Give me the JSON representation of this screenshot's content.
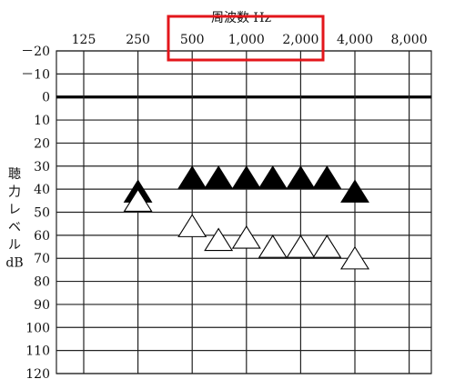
{
  "chart_data": {
    "type": "scatter",
    "title": "周波数 Hz",
    "xlabel": "周波数 Hz",
    "ylabel": "聴力レベル dB",
    "ylabel_chars": [
      "聴",
      "力",
      "レ",
      "ベ",
      "ル",
      "dB"
    ],
    "x_scale": "log2",
    "x_tick_values": [
      125,
      250,
      500,
      1000,
      2000,
      4000,
      8000
    ],
    "x_tick_labels": [
      "125",
      "250",
      "500",
      "1,000",
      "2,000",
      "4,000",
      "8,000"
    ],
    "y_ticks": [
      -20,
      -10,
      0,
      10,
      20,
      30,
      40,
      50,
      60,
      70,
      80,
      90,
      100,
      110,
      120
    ],
    "y_tick_labels": [
      "－20",
      "－10",
      "0",
      "10",
      "20",
      "30",
      "40",
      "50",
      "60",
      "70",
      "80",
      "90",
      "100",
      "110",
      "120"
    ],
    "ylim": [
      -20,
      120
    ],
    "y_inverted": true,
    "grid": true,
    "reference_line": 0,
    "highlight": {
      "target": "title",
      "color": "#e3161b"
    },
    "series": [
      {
        "marker": "filled-triangle",
        "color": "#000000",
        "points": [
          {
            "x": 250,
            "y": 42
          },
          {
            "x": 500,
            "y": 36
          },
          {
            "x": 700,
            "y": 36
          },
          {
            "x": 1000,
            "y": 36
          },
          {
            "x": 1400,
            "y": 36
          },
          {
            "x": 2000,
            "y": 36
          },
          {
            "x": 2800,
            "y": 36
          },
          {
            "x": 4000,
            "y": 42
          }
        ]
      },
      {
        "marker": "open-triangle",
        "color": "#000000",
        "points": [
          {
            "x": 250,
            "y": 46
          },
          {
            "x": 500,
            "y": 57
          },
          {
            "x": 700,
            "y": 63
          },
          {
            "x": 1000,
            "y": 62
          },
          {
            "x": 1400,
            "y": 66
          },
          {
            "x": 2000,
            "y": 66
          },
          {
            "x": 2800,
            "y": 66
          },
          {
            "x": 4000,
            "y": 71
          }
        ]
      }
    ]
  }
}
